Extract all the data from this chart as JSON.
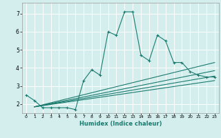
{
  "xlabel": "Humidex (Indice chaleur)",
  "bg_color": "#d4eeee",
  "line_color": "#1a7a6e",
  "grid_color": "#ffffff",
  "xlim": [
    -0.5,
    23.5
  ],
  "ylim": [
    1.5,
    7.6
  ],
  "xticks": [
    0,
    1,
    2,
    3,
    4,
    5,
    6,
    7,
    8,
    9,
    10,
    11,
    12,
    13,
    14,
    15,
    16,
    17,
    18,
    19,
    20,
    21,
    22,
    23
  ],
  "yticks": [
    2,
    3,
    4,
    5,
    6,
    7
  ],
  "main_x": [
    0,
    1,
    2,
    3,
    4,
    5,
    6,
    7,
    8,
    9,
    10,
    11,
    12,
    13,
    14,
    15,
    16,
    17,
    18,
    19,
    20,
    21,
    22,
    23
  ],
  "main_y": [
    2.5,
    2.2,
    1.8,
    1.8,
    1.8,
    1.8,
    1.7,
    3.3,
    3.9,
    3.6,
    6.0,
    5.8,
    7.1,
    7.1,
    4.7,
    4.4,
    5.8,
    5.5,
    4.3,
    4.3,
    3.8,
    3.6,
    3.5,
    3.5
  ],
  "line2_x": [
    1,
    23
  ],
  "line2_y": [
    1.85,
    3.55
  ],
  "line3_x": [
    1,
    23
  ],
  "line3_y": [
    1.85,
    3.3
  ],
  "line4_x": [
    1,
    23
  ],
  "line4_y": [
    1.85,
    4.3
  ],
  "line5_x": [
    1,
    23
  ],
  "line5_y": [
    1.85,
    3.85
  ]
}
